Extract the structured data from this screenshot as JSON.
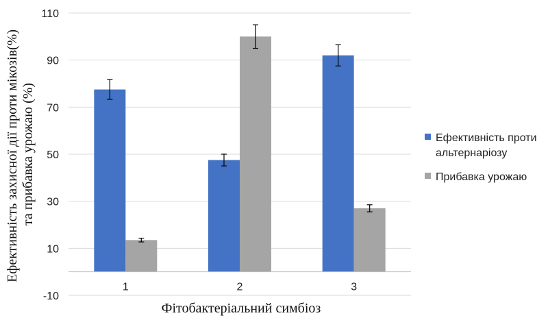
{
  "chart_data": {
    "type": "bar",
    "title": "",
    "xlabel": "Фітобактеріальний симбіоз",
    "ylabel": "Ефективність захисної дії проти мікозів(%) та прибавка урожаю (%)",
    "ylabel_lines": [
      "Ефективність захисної дії проти мікозів(%)",
      "та прибавка урожаю (%)"
    ],
    "categories": [
      "1",
      "2",
      "3"
    ],
    "ylim": [
      -10,
      110
    ],
    "yticks": [
      -10,
      10,
      30,
      50,
      70,
      90,
      110
    ],
    "grid": true,
    "legend_position": "right",
    "series": [
      {
        "name": "Ефективність проти альтернаріозу",
        "legend_lines": [
          "Ефективність проти",
          "альтернаріозу"
        ],
        "color": "#4472c4",
        "values": [
          77.5,
          47.5,
          92
        ],
        "errors": [
          4.2,
          2.5,
          4.5
        ]
      },
      {
        "name": "Прибавка урожаю",
        "legend_lines": [
          "Прибавка урожаю"
        ],
        "color": "#a5a5a5",
        "values": [
          13.5,
          100,
          27
        ],
        "errors": [
          0.8,
          5,
          1.5
        ]
      }
    ]
  }
}
